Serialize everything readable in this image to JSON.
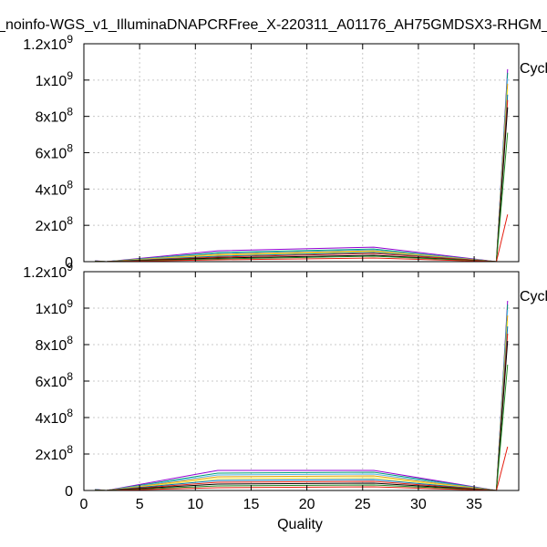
{
  "title": "_noinfo-WGS_v1_IlluminaDNAPCRFree_X-220311_A01176_AH75GMDSX3-RHGM_",
  "chart_data": [
    {
      "type": "line",
      "panel": "top",
      "legend_label": "Cycl",
      "legend_position": "top-right",
      "grid": true,
      "xlabel": "",
      "ylabel": "",
      "xlim": [
        0,
        39
      ],
      "ylim": [
        0,
        1200000000
      ],
      "x": [
        1,
        2,
        12,
        26,
        37,
        38
      ],
      "series_values": [
        [
          5000000,
          0,
          60000000,
          80000000,
          0,
          1060000000
        ],
        [
          4000000,
          0,
          50000000,
          70000000,
          0,
          1040000000
        ],
        [
          3000000,
          0,
          45000000,
          65000000,
          0,
          1010000000
        ],
        [
          3000000,
          0,
          40000000,
          60000000,
          0,
          980000000
        ],
        [
          2000000,
          0,
          35000000,
          55000000,
          0,
          950000000
        ],
        [
          2000000,
          0,
          30000000,
          50000000,
          0,
          920000000
        ],
        [
          2000000,
          0,
          25000000,
          45000000,
          0,
          890000000
        ],
        [
          1000000,
          0,
          20000000,
          35000000,
          0,
          850000000
        ],
        [
          1000000,
          0,
          15000000,
          30000000,
          0,
          710000000
        ],
        [
          0,
          0,
          10000000,
          20000000,
          0,
          260000000
        ]
      ]
    },
    {
      "type": "line",
      "panel": "bottom",
      "legend_label": "Cycl",
      "legend_position": "top-right",
      "grid": true,
      "xlabel": "Quality",
      "ylabel": "",
      "xlim": [
        0,
        39
      ],
      "ylim": [
        0,
        1200000000
      ],
      "x": [
        1,
        2,
        12,
        26,
        37,
        38
      ],
      "series_values": [
        [
          6000000,
          0,
          110000000,
          110000000,
          0,
          1040000000
        ],
        [
          5000000,
          0,
          95000000,
          100000000,
          0,
          1020000000
        ],
        [
          4000000,
          0,
          85000000,
          90000000,
          0,
          990000000
        ],
        [
          3000000,
          0,
          75000000,
          80000000,
          0,
          960000000
        ],
        [
          3000000,
          0,
          65000000,
          70000000,
          0,
          930000000
        ],
        [
          2000000,
          0,
          55000000,
          60000000,
          0,
          900000000
        ],
        [
          2000000,
          0,
          45000000,
          50000000,
          0,
          860000000
        ],
        [
          1000000,
          0,
          35000000,
          40000000,
          0,
          820000000
        ],
        [
          1000000,
          0,
          25000000,
          30000000,
          0,
          690000000
        ],
        [
          0,
          0,
          15000000,
          20000000,
          0,
          240000000
        ]
      ]
    }
  ],
  "x_ticks": [
    "0",
    "5",
    "10",
    "15",
    "20",
    "25",
    "30",
    "35"
  ],
  "x_tick_values": [
    0,
    5,
    10,
    15,
    20,
    25,
    30,
    35
  ],
  "y_tick_values": [
    0,
    200000000,
    400000000,
    600000000,
    800000000,
    1000000000,
    1200000000
  ],
  "y_ticks": [
    {
      "mant": "0",
      "exp": ""
    },
    {
      "mant": "2x10",
      "exp": "8"
    },
    {
      "mant": "4x10",
      "exp": "8"
    },
    {
      "mant": "6x10",
      "exp": "8"
    },
    {
      "mant": "8x10",
      "exp": "8"
    },
    {
      "mant": "1x10",
      "exp": "9"
    },
    {
      "mant": "1.2x10",
      "exp": "9"
    }
  ],
  "series_colors": [
    "#9400d3",
    "#009e73",
    "#56b4e9",
    "#e69f00",
    "#f0e442",
    "#0072b2",
    "#e51e10",
    "#000000",
    "#228b22",
    "#e51e10"
  ]
}
